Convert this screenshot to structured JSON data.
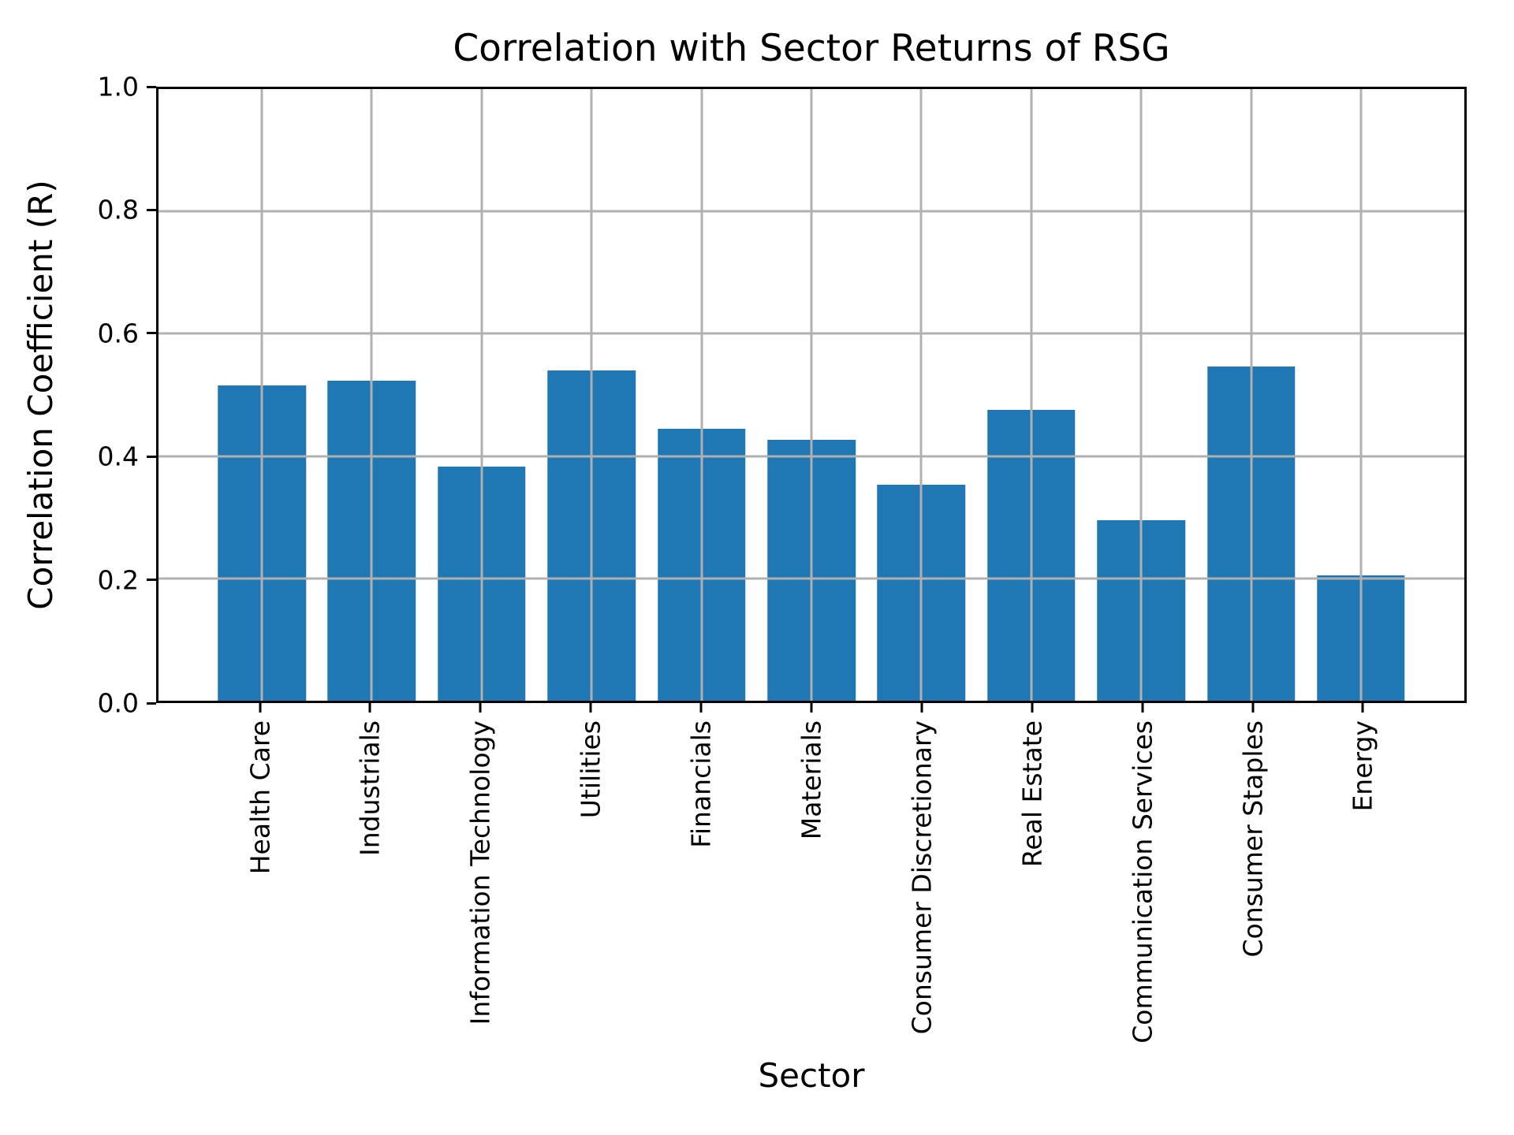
{
  "chart_data": {
    "type": "bar",
    "title": "Correlation with Sector Returns of RSG",
    "xlabel": "Sector",
    "ylabel": "Correlation Coefficient (R)",
    "categories": [
      "Health Care",
      "Industrials",
      "Information Technology",
      "Utilities",
      "Financials",
      "Materials",
      "Consumer Discretionary",
      "Real Estate",
      "Communication Services",
      "Consumer Staples",
      "Energy"
    ],
    "values": [
      0.515,
      0.523,
      0.383,
      0.54,
      0.444,
      0.426,
      0.353,
      0.476,
      0.295,
      0.546,
      0.205
    ],
    "ylim": [
      0.0,
      1.0
    ],
    "yticks": [
      0.0,
      0.2,
      0.4,
      0.6,
      0.8,
      1.0
    ],
    "ytick_labels": [
      "0.0",
      "0.2",
      "0.4",
      "0.6",
      "0.8",
      "1.0"
    ],
    "grid": true,
    "legend": null,
    "bar_color": "#1f77b4",
    "grid_color": "#b0b0b0",
    "spine_color": "#000000",
    "background_color": "#ffffff"
  }
}
